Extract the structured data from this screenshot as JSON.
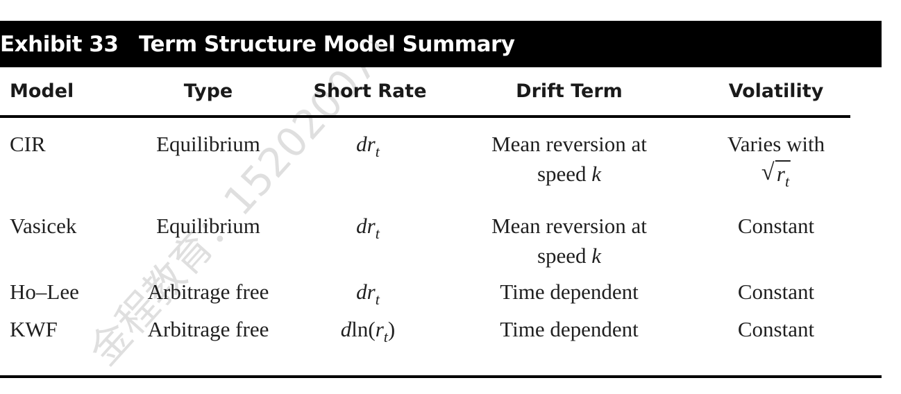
{
  "exhibit": {
    "label": "Exhibit 33",
    "title": "Term Structure Model Summary"
  },
  "columns": [
    "Model",
    "Type",
    "Short Rate",
    "Drift Term",
    "Volatility"
  ],
  "rows": [
    {
      "model": "CIR",
      "type": "Equilibrium",
      "short_rate": "dr",
      "short_rate_sub": "t",
      "drift_line1": "Mean reversion at",
      "drift_line2": "speed",
      "drift_var": "k",
      "volatility_line1": "Varies with",
      "volatility_sqrt": "r",
      "volatility_sqrt_sub": "t"
    },
    {
      "model": "Vasicek",
      "type": "Equilibrium",
      "short_rate": "dr",
      "short_rate_sub": "t",
      "drift_line1": "Mean reversion at",
      "drift_line2": "speed",
      "drift_var": "k",
      "volatility": "Constant"
    },
    {
      "model": "Ho–Lee",
      "type": "Arbitrage free",
      "short_rate": "dr",
      "short_rate_sub": "t",
      "drift": "Time dependent",
      "volatility": "Constant"
    },
    {
      "model": "KWF",
      "type": "Arbitrage free",
      "short_rate_prefix": "d",
      "short_rate_fn": "ln(",
      "short_rate_var": "r",
      "short_rate_sub": "t",
      "short_rate_suffix": ")",
      "drift": "Time dependent",
      "volatility": "Constant"
    }
  ],
  "watermark": "金程教育：1520200713"
}
